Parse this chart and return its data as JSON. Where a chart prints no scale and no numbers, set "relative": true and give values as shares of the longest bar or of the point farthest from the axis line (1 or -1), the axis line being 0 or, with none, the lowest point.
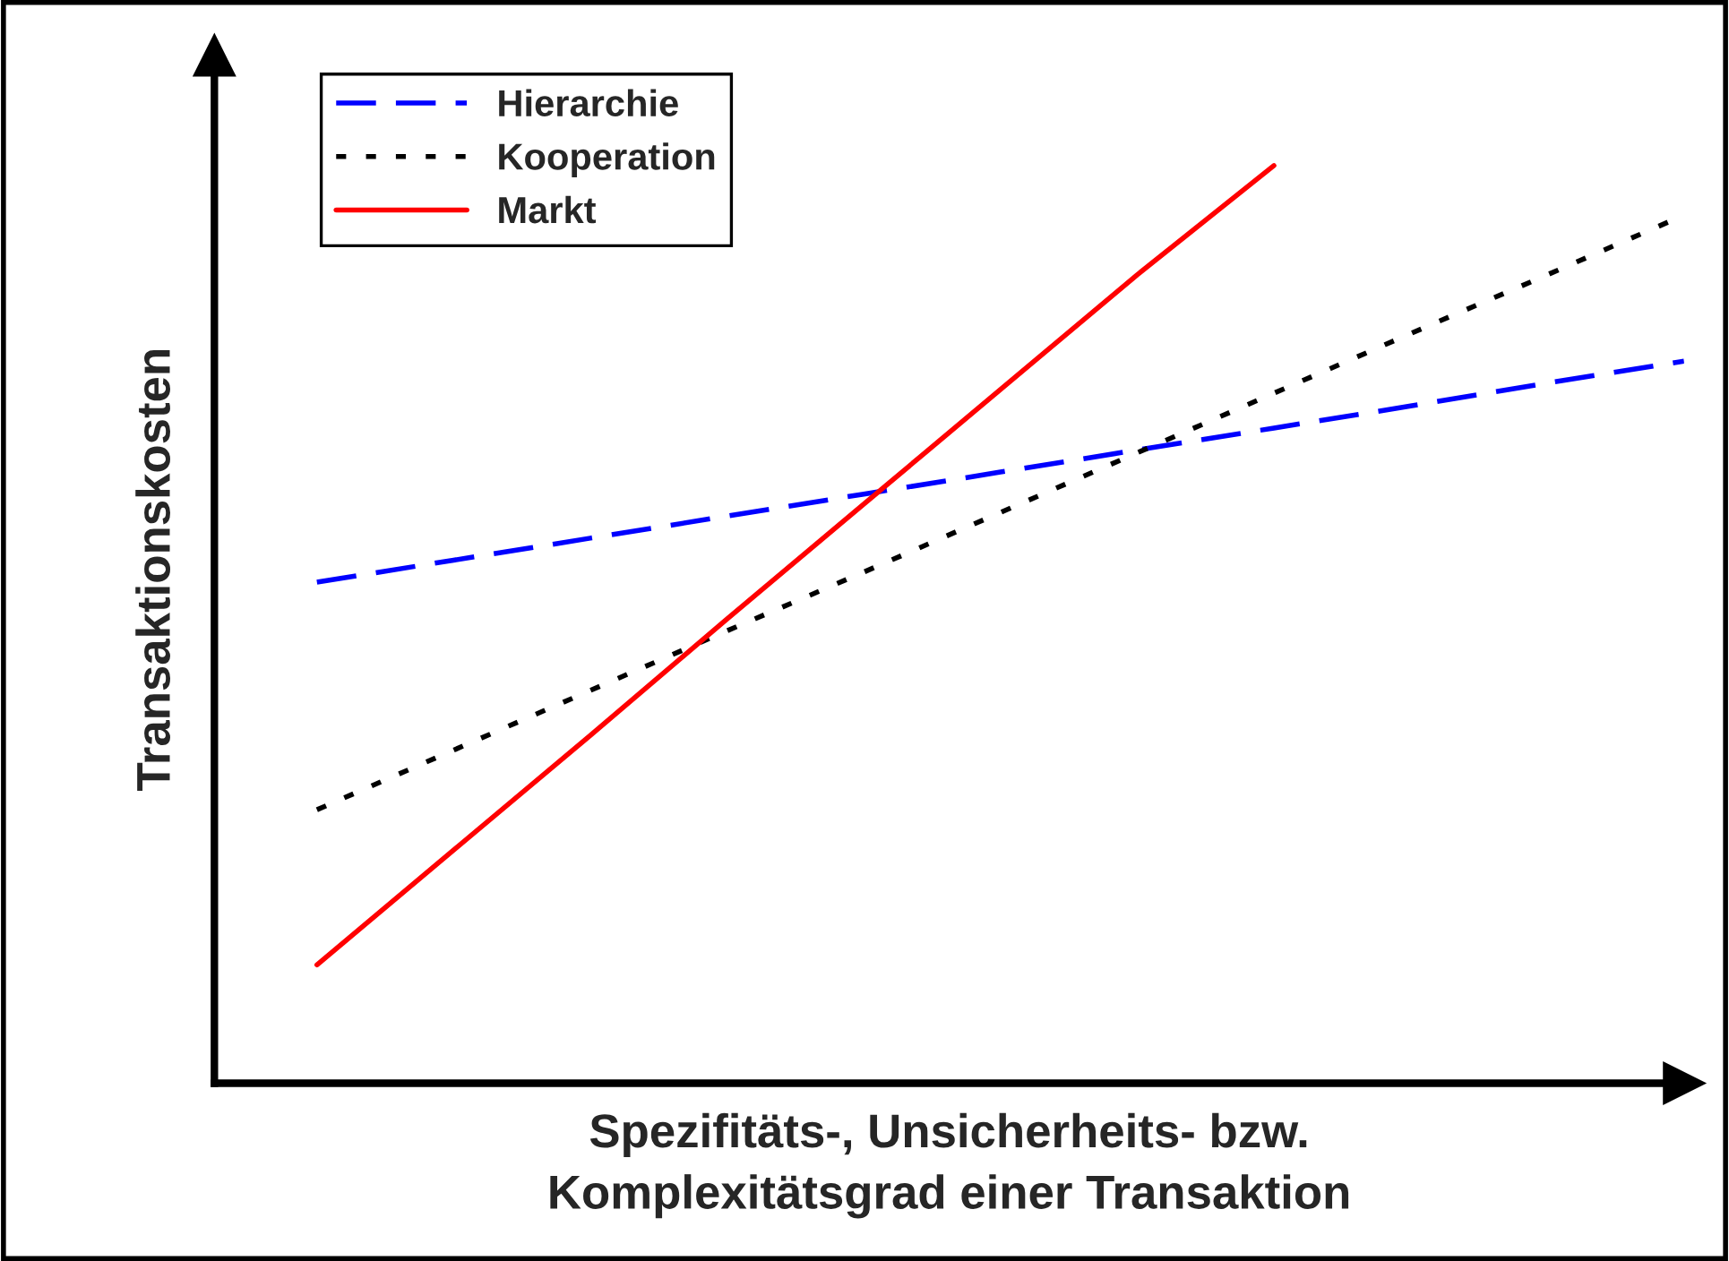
{
  "chart_data": {
    "type": "line",
    "relative": true,
    "xlabel": "Spezifitäts-, Unsicherheits- bzw.\nKomplexitätsgrad einer Transaktion",
    "ylabel": "Transaktionskosten",
    "categories": [
      null,
      null,
      null,
      null,
      null,
      null,
      null,
      null,
      null,
      null,
      null
    ],
    "series": [
      {
        "name": "Hierarchie",
        "color": "#0000ff",
        "line_style": "dashed",
        "values": [
          0.546,
          0.57,
          0.594,
          0.618,
          0.642,
          0.666,
          0.69,
          0.714,
          0.738,
          0.763,
          0.787
        ]
      },
      {
        "name": "Kooperation",
        "color": "#000000",
        "line_style": "dotted",
        "values": [
          0.298,
          0.363,
          0.428,
          0.493,
          0.557,
          0.622,
          0.687,
          0.752,
          0.817,
          0.881,
          0.946
        ]
      },
      {
        "name": "Markt",
        "color": "#ff0000",
        "line_style": "solid",
        "values": [
          0.129,
          0.254,
          0.379,
          0.506,
          0.631,
          0.756,
          0.881,
          1.0,
          null,
          null,
          null
        ]
      }
    ],
    "legend": "top left",
    "marker": "none"
  }
}
